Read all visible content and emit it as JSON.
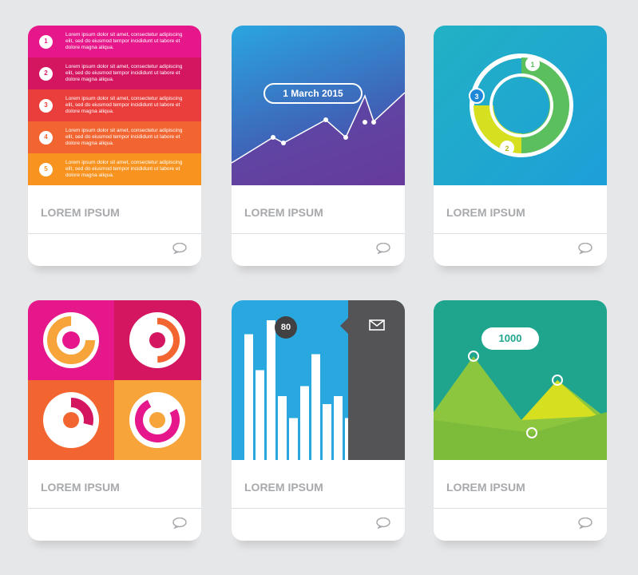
{
  "cards": [
    {
      "title": "LOREM IPSUM",
      "items": [
        {
          "num": "1",
          "text": "Lorem ipsum dolor sit amet, consectetur adipiscing elit, sed do eiusmod tempor incididunt ut labore et dolore magna aliqua.",
          "color": "#e5178a"
        },
        {
          "num": "2",
          "text": "Lorem ipsum dolor sit amet, consectetur adipiscing elit, sed do eiusmod tempor incididunt ut labore et dolore magna aliqua.",
          "color": "#d3165f"
        },
        {
          "num": "3",
          "text": "Lorem ipsum dolor sit amet, consectetur adipiscing elit, sed do eiusmod tempor incididunt ut labore et dolore magna aliqua.",
          "color": "#ea3e3c"
        },
        {
          "num": "4",
          "text": "Lorem ipsum dolor sit amet, consectetur adipiscing elit, sed do eiusmod tempor incididunt ut labore et dolore magna aliqua.",
          "color": "#f26531"
        },
        {
          "num": "5",
          "text": "Lorem ipsum dolor sit amet, consectetur adipiscing elit, sed do eiusmod tempor incididunt ut labore et dolore magna aliqua.",
          "color": "#f7931e"
        }
      ]
    },
    {
      "title": "LOREM IPSUM",
      "label": "1 March 2015"
    },
    {
      "title": "LOREM IPSUM",
      "segments": [
        "1",
        "2",
        "3"
      ]
    },
    {
      "title": "LOREM IPSUM"
    },
    {
      "title": "LOREM IPSUM",
      "badge": "80",
      "bars": [
        63,
        45,
        70,
        32,
        21,
        37,
        53,
        28,
        32,
        21
      ],
      "icon": "envelope-icon"
    },
    {
      "title": "LOREM IPSUM",
      "badge": "1000"
    }
  ],
  "icons": {
    "footer": "comment-icon"
  }
}
